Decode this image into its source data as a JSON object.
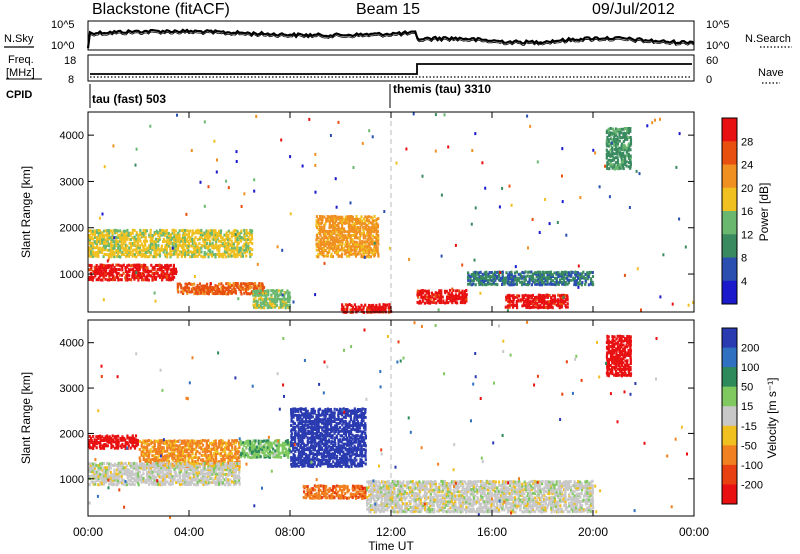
{
  "header": {
    "station": "Blackstone (fitACF)",
    "beam": "Beam 15",
    "date": "09/Jul/2012"
  },
  "noise_panel": {
    "left_label": "N.Sky",
    "right_label": "N.Search",
    "left_ticks": [
      "10^5",
      "10^0"
    ],
    "right_ticks": [
      "10^5",
      "10^0"
    ]
  },
  "freq_panel": {
    "left_label_1": "Freq.",
    "left_label_2": "[MHz]",
    "left_ticks": [
      "18",
      "8"
    ],
    "right_label": "Nave",
    "right_ticks": [
      "60",
      "0"
    ]
  },
  "cpid_panel": {
    "label": "CPID",
    "modes": [
      "tau (fast) 503",
      "themis (tau) 3310"
    ]
  },
  "power_panel": {
    "ylabel": "Slant Range [km]",
    "yticks": [
      "1000",
      "2000",
      "3000",
      "4000"
    ],
    "colorbar_label": "Power [dB]",
    "colorbar_ticks": [
      "4",
      "8",
      "12",
      "16",
      "20",
      "24",
      "28"
    ],
    "colors": [
      "#1a1acc",
      "#2a4fb0",
      "#3a8a60",
      "#6ab870",
      "#f0c020",
      "#f09020",
      "#e85010",
      "#e81010"
    ]
  },
  "velocity_panel": {
    "ylabel": "Slant Range [km]",
    "yticks": [
      "1000",
      "2000",
      "3000",
      "4000"
    ],
    "colorbar_label": "Velocity [m s⁻¹]",
    "colorbar_ticks": [
      "200",
      "100",
      "50",
      "15",
      "-15",
      "-50",
      "-100",
      "-200"
    ],
    "colors": [
      "#2a3ab0",
      "#3070c0",
      "#2e8a5a",
      "#80c860",
      "#c8c8c8",
      "#f0c020",
      "#f08020",
      "#e84010",
      "#e81010"
    ]
  },
  "xaxis": {
    "label": "Time UT",
    "ticks": [
      "00:00",
      "04:00",
      "08:00",
      "12:00",
      "16:00",
      "20:00",
      "00:00"
    ]
  },
  "chart_data": [
    {
      "type": "line",
      "title": "N.Sky / N.Search",
      "x_range_hours": [
        0,
        24
      ],
      "y_scale": "log",
      "ylim": [
        "10^0",
        "10^5"
      ]
    },
    {
      "type": "line",
      "title": "Freq. / Nave",
      "x": [
        "00:00",
        "13:00",
        "13:00",
        "24:00"
      ],
      "series": [
        {
          "name": "Freq. [MHz]",
          "values": [
            10.5,
            10.5,
            15,
            15
          ]
        },
        {
          "name": "Nave",
          "values": [
            10,
            10,
            10,
            10
          ]
        }
      ],
      "ylim": [
        8,
        18
      ]
    },
    {
      "type": "heatmap",
      "title": "Power [dB]",
      "xlabel": "Time UT",
      "ylabel": "Slant Range [km]",
      "x_range_hours": [
        0,
        24
      ],
      "ylim": [
        180,
        4500
      ],
      "zlim": [
        0,
        30
      ],
      "regions": [
        {
          "t": [
            0.0,
            3.5
          ],
          "r": [
            900,
            1250
          ],
          "v": 28
        },
        {
          "t": [
            3.5,
            7.0
          ],
          "r": [
            600,
            850
          ],
          "v": 24
        },
        {
          "t": [
            0.0,
            6.5
          ],
          "r": [
            1400,
            2000
          ],
          "v": 16
        },
        {
          "t": [
            6.5,
            8.0
          ],
          "r": [
            300,
            700
          ],
          "v": 14
        },
        {
          "t": [
            9.0,
            11.5
          ],
          "r": [
            1400,
            2300
          ],
          "v": 20
        },
        {
          "t": [
            10.0,
            12.0
          ],
          "r": [
            200,
            400
          ],
          "v": 28
        },
        {
          "t": [
            13.0,
            15.0
          ],
          "r": [
            400,
            700
          ],
          "v": 28
        },
        {
          "t": [
            16.5,
            19.0
          ],
          "r": [
            300,
            600
          ],
          "v": 28
        },
        {
          "t": [
            15.0,
            20.0
          ],
          "r": [
            800,
            1100
          ],
          "v": 8
        },
        {
          "t": [
            20.5,
            21.5
          ],
          "r": [
            3300,
            4200
          ],
          "v": 10
        }
      ]
    },
    {
      "type": "heatmap",
      "title": "Velocity [m s-1]",
      "xlabel": "Time UT",
      "ylabel": "Slant Range [km]",
      "x_range_hours": [
        0,
        24
      ],
      "ylim": [
        180,
        4500
      ],
      "zlim": [
        -200,
        200
      ],
      "regions": [
        {
          "t": [
            0.0,
            2.0
          ],
          "r": [
            1700,
            2000
          ],
          "v": -200
        },
        {
          "t": [
            2.0,
            6.0
          ],
          "r": [
            1300,
            1900
          ],
          "v": -80
        },
        {
          "t": [
            0.0,
            6.0
          ],
          "r": [
            900,
            1400
          ],
          "v": 0
        },
        {
          "t": [
            6.0,
            8.0
          ],
          "r": [
            1500,
            1900
          ],
          "v": 50
        },
        {
          "t": [
            8.0,
            11.0
          ],
          "r": [
            1300,
            2600
          ],
          "v": 200
        },
        {
          "t": [
            8.5,
            11.0
          ],
          "r": [
            600,
            900
          ],
          "v": -100
        },
        {
          "t": [
            11.0,
            20.0
          ],
          "r": [
            300,
            1000
          ],
          "v": 0
        },
        {
          "t": [
            20.5,
            21.5
          ],
          "r": [
            3300,
            4200
          ],
          "v": -200
        }
      ]
    }
  ]
}
